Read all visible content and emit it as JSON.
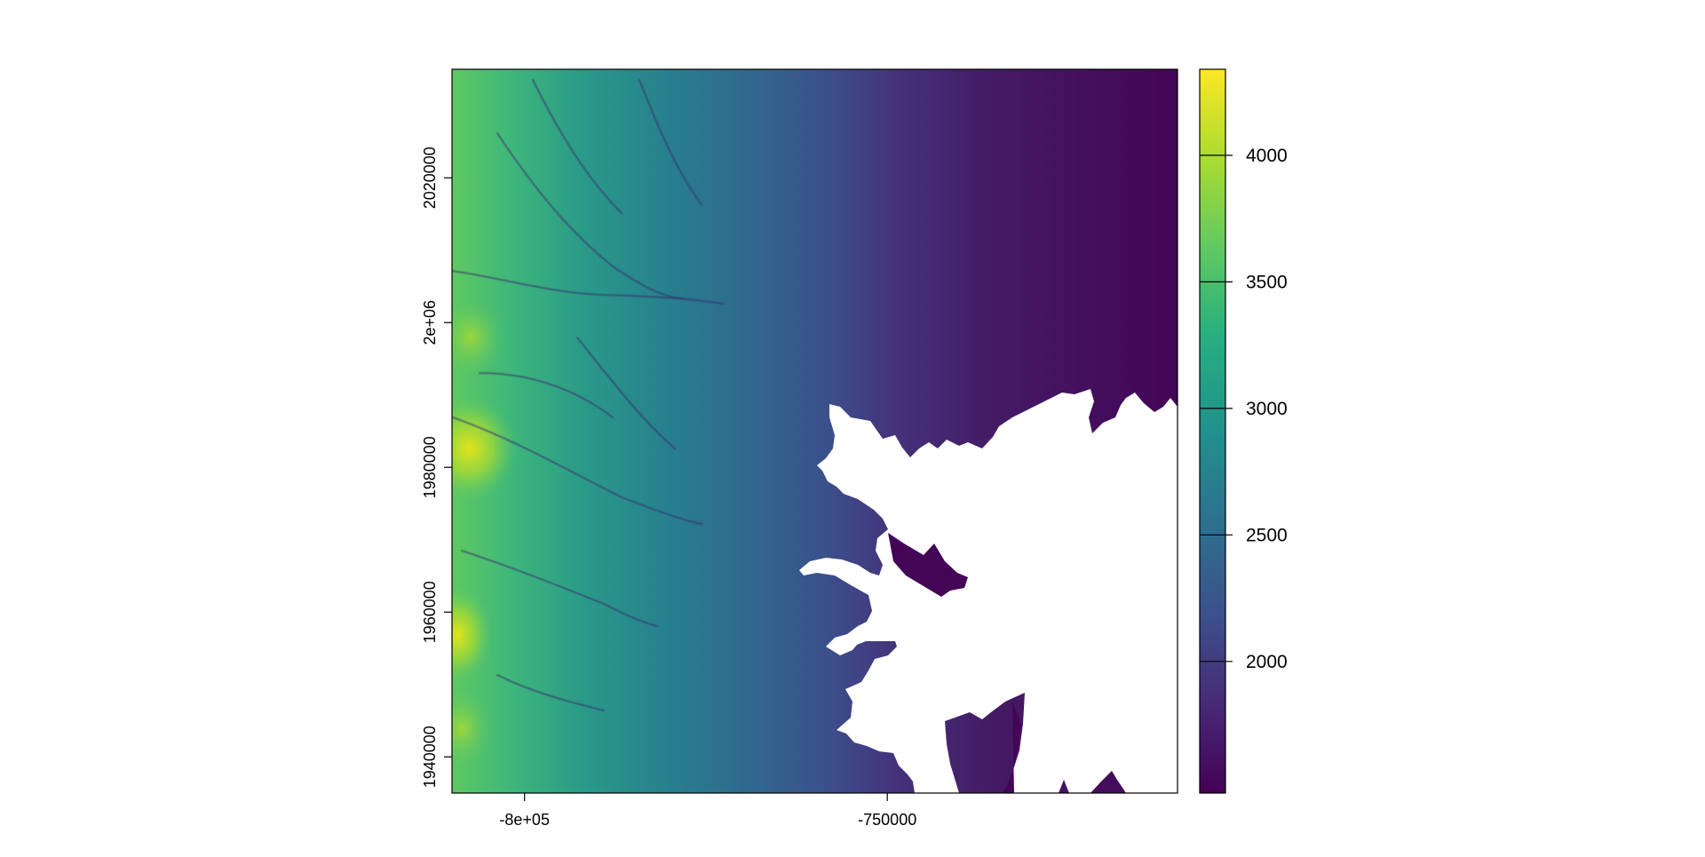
{
  "chart_data": {
    "type": "heatmap",
    "title": "",
    "xlabel": "",
    "ylabel": "",
    "x_range": [
      -810000,
      -710000
    ],
    "y_range": [
      1935000,
      2035000
    ],
    "x_ticks": [
      {
        "value": -800000,
        "label": "-8e+05"
      },
      {
        "value": -750000,
        "label": "-750000"
      }
    ],
    "y_ticks": [
      {
        "value": 1940000,
        "label": "1940000"
      },
      {
        "value": 1960000,
        "label": "1960000"
      },
      {
        "value": 1980000,
        "label": "1980000"
      },
      {
        "value": 2000000,
        "label": "2e+06"
      },
      {
        "value": 2020000,
        "label": "2020000"
      }
    ],
    "colorbar": {
      "range": [
        1480,
        4340
      ],
      "ticks": [
        {
          "value": 2000,
          "label": "2000"
        },
        {
          "value": 2500,
          "label": "2500"
        },
        {
          "value": 3000,
          "label": "3000"
        },
        {
          "value": 3500,
          "label": "3500"
        },
        {
          "value": 4000,
          "label": "4000"
        }
      ],
      "colormap": "viridis"
    },
    "legend": "right",
    "grid": false,
    "colors": {
      "high": "#fde725",
      "mid": "#21918c",
      "low": "#440154",
      "no_data": "#ffffff"
    }
  }
}
